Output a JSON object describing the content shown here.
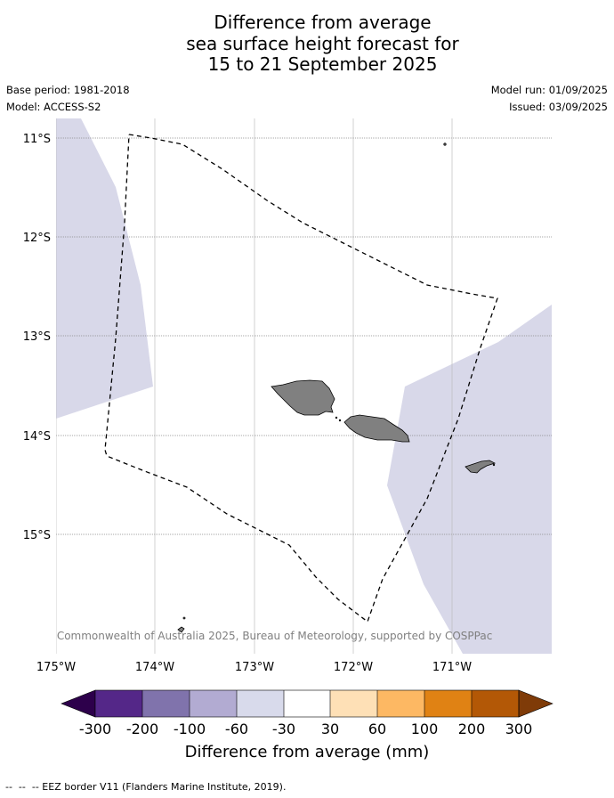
{
  "title": {
    "line1": "Difference from average",
    "line2": "sea surface height forecast for",
    "line3": "15 to 21 September 2025"
  },
  "meta": {
    "base_period": "Base period: 1981-2018",
    "model": "Model: ACCESS-S2",
    "model_run": "Model run: 01/09/2025",
    "issued": "Issued: 03/09/2025"
  },
  "map": {
    "lat_labels": [
      "11°S",
      "12°S",
      "13°S",
      "14°S",
      "15°S"
    ],
    "lon_labels": [
      "175°W",
      "174°W",
      "173°W",
      "172°W",
      "171°W"
    ],
    "copyright": "© Commonwealth of Australia 2025, Bureau of Meteorology, supported by COSPPac",
    "anomaly_fill_color": "#d8d8e9",
    "land_color": "#808080"
  },
  "colorbar": {
    "ticks": [
      "-300",
      "-200",
      "-100",
      "-60",
      "-30",
      "30",
      "60",
      "100",
      "200",
      "300"
    ],
    "label": "Difference from average (mm)",
    "colors": [
      "#2d004b",
      "#542788",
      "#8073ac",
      "#b2abd2",
      "#d8daeb",
      "#ffffff",
      "#fee0b6",
      "#fdb863",
      "#e08214",
      "#b35806",
      "#7f3b08"
    ]
  },
  "footnote": "--  --  -- EEZ border V11 (Flanders Marine Institute, 2019)."
}
